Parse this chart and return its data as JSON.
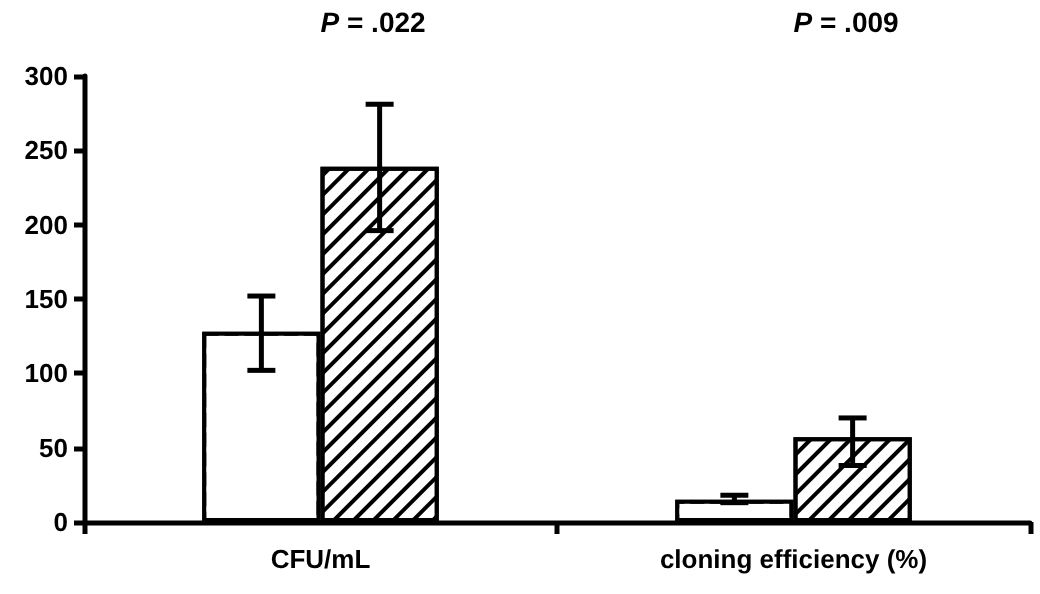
{
  "chart_data": {
    "type": "bar",
    "categories": [
      "CFU/mL",
      "cloning efficiency (%)"
    ],
    "series": [
      {
        "color": "#ffffff",
        "values": [
          128,
          15
        ],
        "errors": [
          [
            102,
            152
          ],
          [
            13,
            18
          ]
        ]
      },
      {
        "color": "#000000",
        "values": [
          239,
          57
        ],
        "errors": [
          [
            196,
            281
          ],
          [
            38,
            70
          ]
        ]
      }
    ],
    "ylim": [
      0,
      300
    ],
    "yticks": [
      0,
      50,
      100,
      150,
      200,
      250,
      300
    ],
    "grid": false,
    "annotations": [
      "P = .022",
      "P = .009"
    ]
  }
}
